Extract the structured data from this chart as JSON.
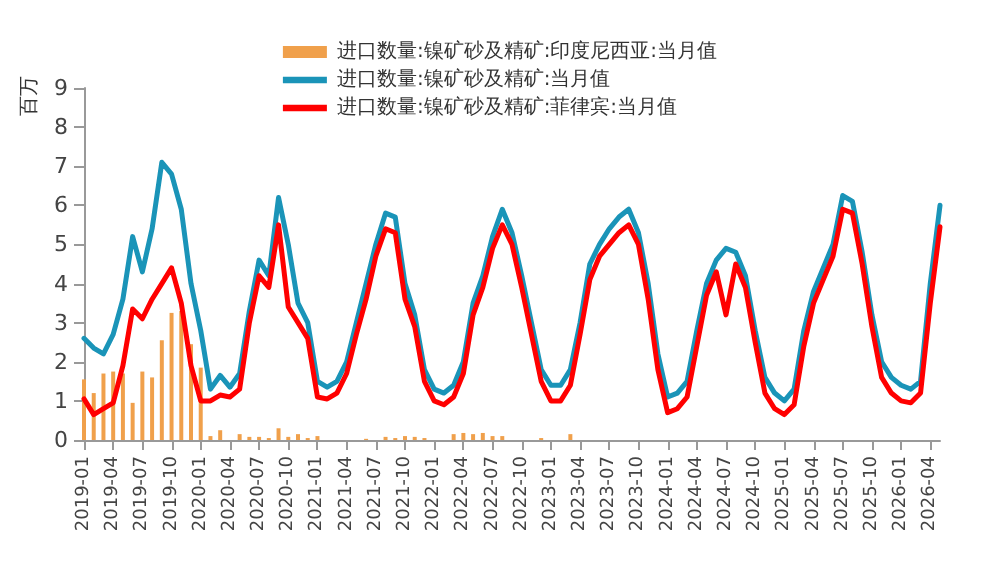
{
  "chart_data": {
    "type": "line",
    "ylabel": "百万",
    "legend": "top",
    "grid": false,
    "marker": "none",
    "line_style": "solid",
    "categories": [
      "2019-01",
      null,
      null,
      "2019-04",
      null,
      null,
      "2019-07",
      null,
      null,
      "2019-10",
      null,
      null,
      "2020-01",
      null,
      null,
      "2020-04",
      null,
      null,
      "2020-07",
      null,
      null,
      "2020-10",
      null,
      null,
      "2021-01",
      null,
      null,
      "2021-04",
      null,
      null,
      "2021-07",
      null,
      null,
      "2021-10",
      null,
      null,
      "2022-01",
      null,
      null,
      "2022-04",
      null,
      null,
      "2022-07",
      null,
      null,
      "2022-10",
      null,
      null,
      "2023-01",
      null,
      null,
      "2023-04",
      null,
      null,
      "2023-07",
      null,
      null,
      "2023-10",
      null,
      null,
      "2024-01",
      null,
      null,
      "2024-04",
      null,
      null,
      "2024-07",
      null,
      null,
      "2024-10",
      null,
      null,
      "2025-01",
      null,
      null,
      "2025-04",
      null,
      null,
      "2025-07",
      null,
      null,
      "2025-10",
      null,
      null,
      "2026-01",
      null,
      null,
      "2026-04",
      null
    ],
    "ylim": [
      0,
      9
    ],
    "yticks": [
      0,
      1,
      2,
      3,
      4,
      5,
      6,
      7,
      8,
      9
    ],
    "series": [
      {
        "name": "进口数量:镍矿砂及精矿:印度尼西亚:当月值",
        "type": "bar",
        "color": "#f0a04b",
        "values": [
          1.55,
          1.2,
          1.7,
          1.75,
          1.7,
          0.95,
          1.75,
          1.6,
          2.55,
          3.25,
          3.3,
          2.45,
          1.85,
          0.1,
          0.25,
          0,
          0.15,
          0.08,
          0.08,
          0.05,
          0.3,
          0.08,
          0.15,
          0.05,
          0.1,
          0,
          0,
          0,
          0,
          0.03,
          0,
          0.08,
          0.05,
          0.1,
          0.08,
          0.05,
          0,
          0,
          0.15,
          0.18,
          0.15,
          0.18,
          0.1,
          0.1,
          0,
          0,
          0,
          0.05,
          0,
          0,
          0.15,
          0,
          0,
          0,
          0,
          0,
          0,
          0,
          0,
          0,
          0,
          0,
          0,
          0,
          0,
          0,
          0,
          0,
          0,
          0,
          0,
          0,
          0,
          0,
          0,
          0,
          0,
          0,
          0,
          0,
          0,
          0,
          0,
          0,
          0,
          0,
          0,
          0,
          0
        ]
      },
      {
        "name": "进口数量:镍矿砂及精矿:当月值",
        "color": "#1a94b8",
        "values": [
          2.6,
          2.35,
          2.2,
          2.7,
          3.6,
          5.2,
          4.3,
          5.4,
          7.1,
          6.8,
          5.9,
          4.0,
          2.8,
          1.3,
          1.65,
          1.35,
          1.7,
          3.3,
          4.6,
          4.2,
          6.2,
          5.0,
          3.5,
          3.0,
          1.5,
          1.35,
          1.5,
          2.0,
          3.0,
          4.0,
          5.0,
          5.8,
          5.7,
          4.0,
          3.2,
          1.8,
          1.3,
          1.2,
          1.4,
          2.0,
          3.5,
          4.2,
          5.2,
          5.9,
          5.3,
          4.2,
          3.0,
          1.8,
          1.4,
          1.4,
          1.8,
          3.0,
          4.5,
          5.0,
          5.4,
          5.7,
          5.9,
          5.3,
          4.0,
          2.2,
          1.1,
          1.2,
          1.5,
          2.8,
          4.0,
          4.6,
          4.9,
          4.8,
          4.2,
          2.8,
          1.6,
          1.2,
          1.0,
          1.3,
          2.8,
          3.8,
          4.4,
          5.0,
          6.25,
          6.1,
          4.8,
          3.2,
          2.0,
          1.6,
          1.4,
          1.3,
          1.5,
          4.0,
          6.0
        ]
      },
      {
        "name": "进口数量:镍矿砂及精矿:菲律宾:当月值",
        "color": "#ff0000",
        "values": [
          1.05,
          0.65,
          0.8,
          0.95,
          1.9,
          3.35,
          3.1,
          3.6,
          4.0,
          4.4,
          3.5,
          1.9,
          1.0,
          1.0,
          1.15,
          1.1,
          1.3,
          3.0,
          4.2,
          3.9,
          5.5,
          3.4,
          3.0,
          2.6,
          1.1,
          1.05,
          1.2,
          1.7,
          2.7,
          3.6,
          4.7,
          5.4,
          5.3,
          3.6,
          2.9,
          1.5,
          1.0,
          0.9,
          1.1,
          1.7,
          3.2,
          3.9,
          4.9,
          5.5,
          5.0,
          3.9,
          2.7,
          1.5,
          1.0,
          1.0,
          1.4,
          2.7,
          4.1,
          4.7,
          5.0,
          5.3,
          5.5,
          5.0,
          3.6,
          1.8,
          0.7,
          0.8,
          1.1,
          2.4,
          3.7,
          4.3,
          3.2,
          4.5,
          3.9,
          2.5,
          1.2,
          0.8,
          0.65,
          0.9,
          2.4,
          3.5,
          4.1,
          4.7,
          5.9,
          5.8,
          4.5,
          2.9,
          1.6,
          1.2,
          1.0,
          0.95,
          1.2,
          3.5,
          5.45
        ]
      }
    ]
  }
}
